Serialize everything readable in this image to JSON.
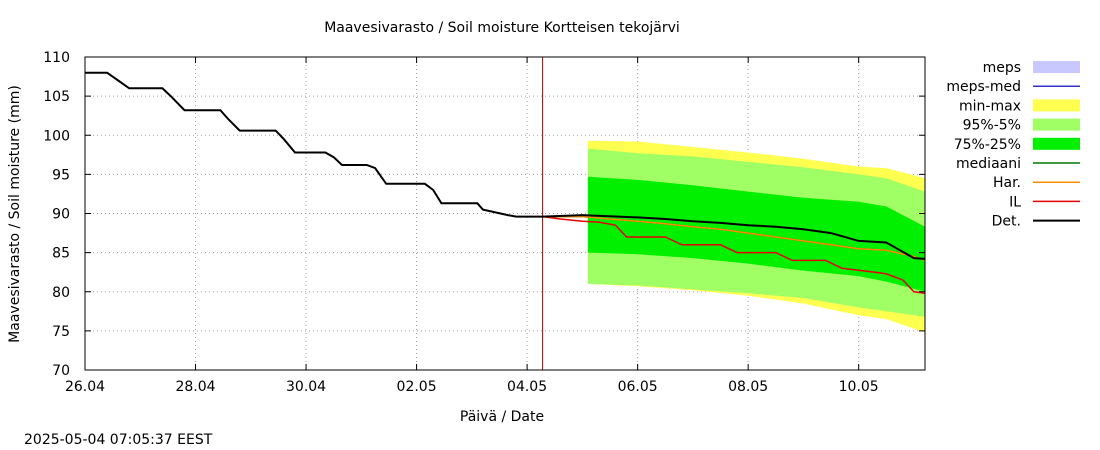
{
  "chart_data": {
    "type": "area",
    "title": "Maavesivarasto / Soil moisture   Kortteisen tekojärvi",
    "xlabel": "Päivä / Date",
    "ylabel": "Maavesivarasto / Soil moisture (mm)",
    "timestamp": "2025-05-04 07:05:37 EEST",
    "x_unit": "days from 26.04 00:00",
    "xlim": [
      0,
      15.2
    ],
    "ylim": [
      70,
      110
    ],
    "grid": true,
    "legend_placement": "right",
    "x_ticks": [
      {
        "x": 0,
        "label": "26.04"
      },
      {
        "x": 2,
        "label": "28.04"
      },
      {
        "x": 4,
        "label": "30.04"
      },
      {
        "x": 6,
        "label": "02.05"
      },
      {
        "x": 8,
        "label": "04.05"
      },
      {
        "x": 10,
        "label": "06.05"
      },
      {
        "x": 12,
        "label": "08.05"
      },
      {
        "x": 14,
        "label": "10.05"
      }
    ],
    "y_ticks": [
      70,
      75,
      80,
      85,
      90,
      95,
      100,
      105,
      110
    ],
    "forecast_start": 8.28,
    "legend": [
      {
        "label": "meps",
        "color": "#c8c8ff",
        "kind": "box"
      },
      {
        "label": "meps-med",
        "color": "#3232c8",
        "kind": "line"
      },
      {
        "label": "min-max",
        "color": "#ffff50",
        "kind": "box"
      },
      {
        "label": "95%-5%",
        "color": "#a0ff64",
        "kind": "box"
      },
      {
        "label": "75%-25%",
        "color": "#00f000",
        "kind": "box"
      },
      {
        "label": "mediaani",
        "color": "#007800",
        "kind": "line"
      },
      {
        "label": "Har.",
        "color": "#ff8c00",
        "kind": "line"
      },
      {
        "label": "IL",
        "color": "#e60000",
        "kind": "line"
      },
      {
        "label": "Det.",
        "color": "#000000",
        "kind": "line"
      }
    ],
    "series": [
      {
        "name": "Det.",
        "color": "#000000",
        "x": [
          0,
          0.4,
          0.6,
          0.8,
          1.4,
          1.55,
          1.8,
          2.45,
          2.6,
          2.8,
          3.45,
          3.6,
          3.8,
          4.35,
          4.5,
          4.65,
          5.1,
          5.25,
          5.45,
          6.15,
          6.3,
          6.45,
          6.9,
          7.1,
          7.2,
          7.65,
          7.8,
          8.0,
          8.28,
          9,
          10,
          10.5,
          11,
          11.5,
          12,
          12.5,
          13,
          13.5,
          14,
          14.5,
          15,
          15.2
        ],
        "y": [
          108,
          108,
          107,
          106,
          106,
          105,
          103.2,
          103.2,
          102,
          100.6,
          100.6,
          99.5,
          97.8,
          97.8,
          97.2,
          96.2,
          96.2,
          95.8,
          93.8,
          93.8,
          93,
          91.3,
          91.3,
          91.3,
          90.5,
          89.8,
          89.6,
          89.6,
          89.6,
          89.8,
          89.5,
          89.3,
          89,
          88.8,
          88.5,
          88.3,
          88,
          87.5,
          86.5,
          86.3,
          84.3,
          84.2
        ]
      },
      {
        "name": "IL",
        "color": "#e60000",
        "x": [
          8.28,
          8.6,
          9.0,
          9.3,
          9.6,
          9.8,
          10.5,
          10.8,
          11.5,
          11.8,
          12.5,
          12.8,
          13.4,
          13.7,
          14.3,
          14.5,
          14.8,
          15.0,
          15.2
        ],
        "y": [
          89.6,
          89.3,
          89,
          88.9,
          88.5,
          87,
          87,
          86,
          86,
          85,
          85,
          84,
          84,
          83,
          82.5,
          82.3,
          81.5,
          80,
          79.8
        ]
      },
      {
        "name": "mediaani",
        "color": "#007800",
        "x": [
          8.28,
          9,
          9.5,
          10,
          10.5,
          11,
          11.5,
          12,
          12.5,
          13,
          13.5,
          14,
          14.5,
          15,
          15.2
        ],
        "y": [
          89.6,
          89.6,
          89.3,
          89,
          88.7,
          88.3,
          88,
          87.5,
          87,
          86.5,
          86,
          85.5,
          85.3,
          84.5,
          84
        ]
      },
      {
        "name": "Har.",
        "color": "#ff8c00",
        "x": [
          8.28,
          9,
          9.5,
          10,
          10.5,
          11,
          11.5,
          12,
          12.5,
          13,
          13.5,
          14,
          14.5,
          15,
          15.2
        ],
        "y": [
          89.6,
          89.6,
          89.3,
          89,
          88.7,
          88.3,
          88,
          87.5,
          87,
          86.5,
          86,
          85.5,
          85.3,
          84.5,
          84
        ]
      }
    ],
    "bands": [
      {
        "name": "min-max",
        "color": "#ffff50",
        "x": [
          9.1,
          10,
          11,
          12,
          13,
          14,
          14.5,
          15.2
        ],
        "upper": [
          99.3,
          99.2,
          98.5,
          97.8,
          97,
          96,
          95.8,
          94.5
        ],
        "lower": [
          81,
          80.7,
          80.2,
          79.5,
          78.5,
          77,
          76.5,
          74.8
        ]
      },
      {
        "name": "95%-5%",
        "color": "#a0ff64",
        "x": [
          9.1,
          10,
          11,
          12,
          13,
          14,
          14.5,
          15.2
        ],
        "upper": [
          98.3,
          97.7,
          97.3,
          96.6,
          95.9,
          95,
          94.5,
          92.8
        ],
        "lower": [
          81,
          80.8,
          80.3,
          79.8,
          79.2,
          78,
          77.5,
          76.8
        ]
      },
      {
        "name": "75%-25%",
        "color": "#00f000",
        "x": [
          9.1,
          10,
          11,
          12,
          13,
          14,
          14.5,
          15.2
        ],
        "upper": [
          94.7,
          94.3,
          93.6,
          92.8,
          92,
          91.5,
          90.9,
          88.3
        ],
        "lower": [
          85,
          84.8,
          84.3,
          83.6,
          82.7,
          82,
          81.3,
          80
        ]
      }
    ]
  }
}
